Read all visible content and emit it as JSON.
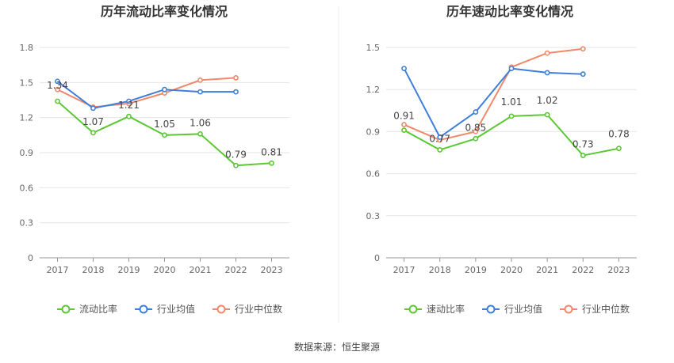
{
  "source": "数据来源：恒生聚源",
  "colors": {
    "company": "#5ac832",
    "industry_avg": "#3f7fdc",
    "industry_median": "#f0896a"
  },
  "chart_data": [
    {
      "type": "line",
      "title": "历年流动比率变化情况",
      "categories": [
        "2017",
        "2018",
        "2019",
        "2020",
        "2021",
        "2022",
        "2023"
      ],
      "ylim": [
        0,
        1.8
      ],
      "yticks": [
        "0",
        "0.3",
        "0.6",
        "0.9",
        "1.2",
        "1.5",
        "1.8"
      ],
      "grid": true,
      "legend_placement": "bottom",
      "series": [
        {
          "name": "流动比率",
          "key": "company",
          "values": [
            1.34,
            1.07,
            1.21,
            1.05,
            1.06,
            0.79,
            0.81
          ],
          "labels": [
            "1.34",
            "1.07",
            "1.21",
            "1.05",
            "1.06",
            "0.79",
            "0.81"
          ]
        },
        {
          "name": "行业均值",
          "key": "industry_avg",
          "values": [
            1.51,
            1.28,
            1.34,
            1.44,
            1.42,
            1.42,
            null
          ]
        },
        {
          "name": "行业中位数",
          "key": "industry_median",
          "values": [
            1.44,
            1.29,
            1.32,
            1.41,
            1.52,
            1.54,
            null
          ]
        }
      ]
    },
    {
      "type": "line",
      "title": "历年速动比率变化情况",
      "categories": [
        "2017",
        "2018",
        "2019",
        "2020",
        "2021",
        "2022",
        "2023"
      ],
      "ylim": [
        0,
        1.5
      ],
      "yticks": [
        "0",
        "0.3",
        "0.6",
        "0.9",
        "1.2",
        "1.5"
      ],
      "grid": true,
      "legend_placement": "bottom",
      "series": [
        {
          "name": "速动比率",
          "key": "company",
          "values": [
            0.91,
            0.77,
            0.85,
            1.01,
            1.02,
            0.73,
            0.78
          ],
          "labels": [
            "0.91",
            "0.77",
            "0.85",
            "1.01",
            "1.02",
            "0.73",
            "0.78"
          ]
        },
        {
          "name": "行业均值",
          "key": "industry_avg",
          "values": [
            1.35,
            0.86,
            1.04,
            1.35,
            1.32,
            1.31,
            null
          ]
        },
        {
          "name": "行业中位数",
          "key": "industry_median",
          "values": [
            0.95,
            0.84,
            0.9,
            1.36,
            1.46,
            1.49,
            null
          ]
        }
      ]
    }
  ]
}
